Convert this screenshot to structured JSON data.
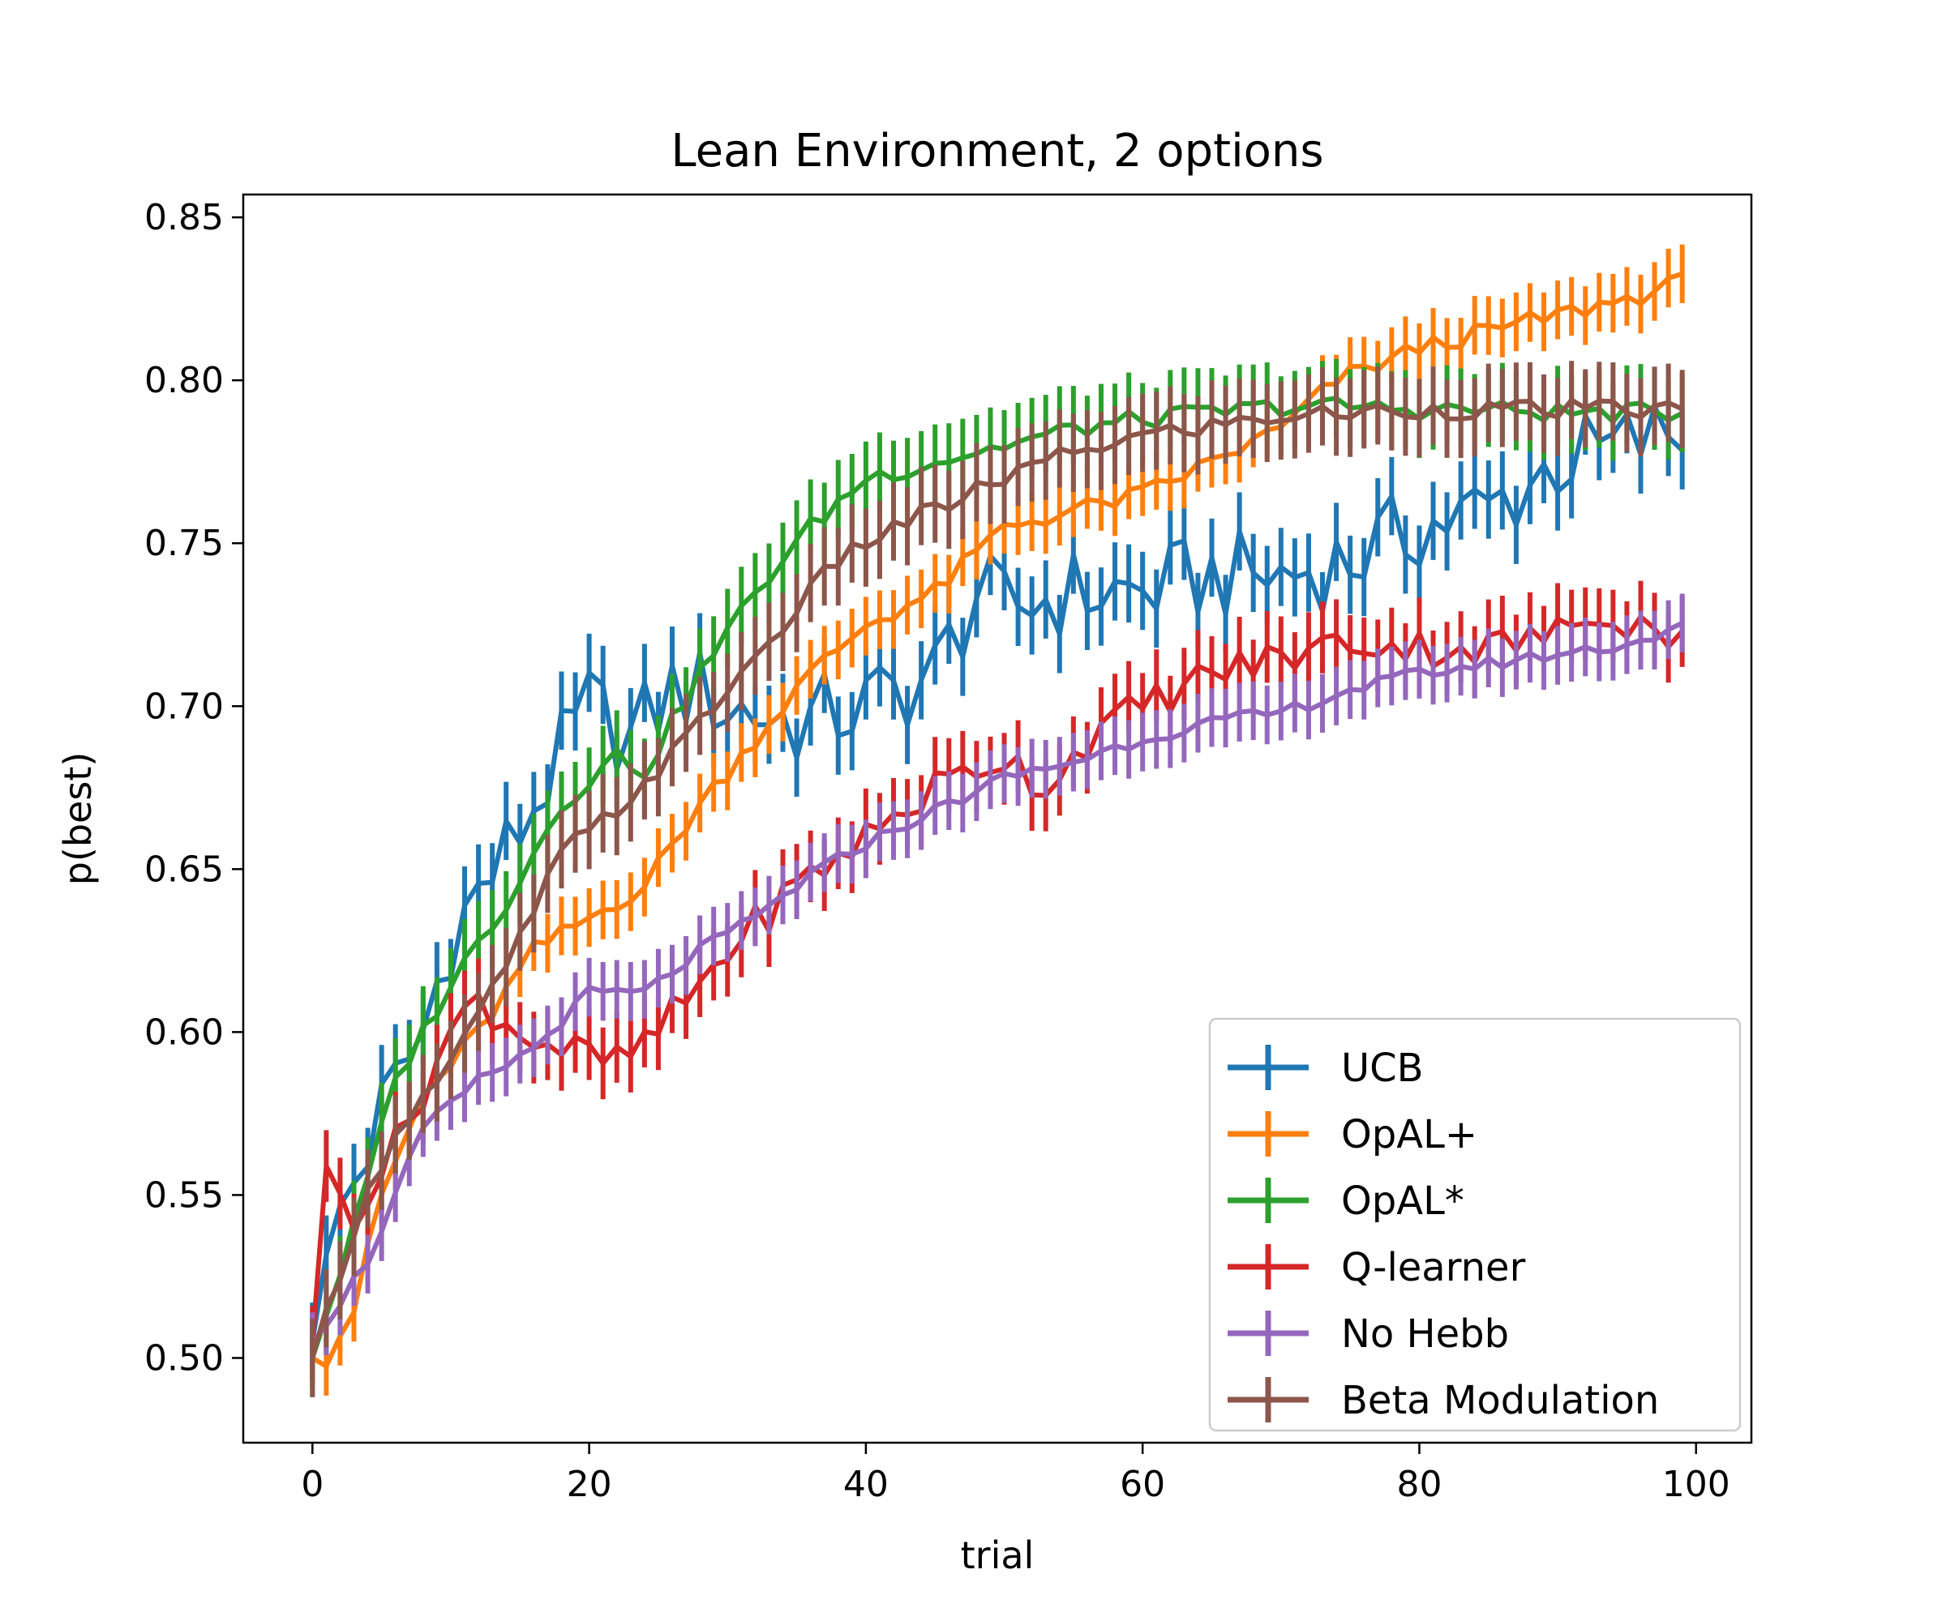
{
  "chart_data": {
    "type": "line",
    "title": "Lean Environment, 2 options",
    "xlabel": "trial",
    "ylabel": "p(best)",
    "xlim": [
      -5,
      104
    ],
    "ylim": [
      0.474,
      0.857
    ],
    "xticks": [
      0,
      20,
      40,
      60,
      80,
      100
    ],
    "xtick_labels": [
      "0",
      "20",
      "40",
      "60",
      "80",
      "100"
    ],
    "yticks": [
      0.5,
      0.55,
      0.6,
      0.65,
      0.7,
      0.75,
      0.8,
      0.85
    ],
    "ytick_labels": [
      "0.50",
      "0.55",
      "0.60",
      "0.65",
      "0.70",
      "0.75",
      "0.80",
      "0.85"
    ],
    "grid": false,
    "legend_position": "bottom-right",
    "error_bars": true,
    "series": [
      {
        "name": "UCB",
        "color": "#1f77b4",
        "key_points": [
          [
            0,
            0.505
          ],
          [
            2,
            0.545
          ],
          [
            5,
            0.575
          ],
          [
            8,
            0.6
          ],
          [
            10,
            0.63
          ],
          [
            14,
            0.655
          ],
          [
            18,
            0.685
          ],
          [
            20,
            0.7
          ],
          [
            23,
            0.69
          ],
          [
            26,
            0.705
          ],
          [
            28,
            0.705
          ],
          [
            30,
            0.7
          ],
          [
            35,
            0.695
          ],
          [
            40,
            0.7
          ],
          [
            45,
            0.71
          ],
          [
            48,
            0.735
          ],
          [
            50,
            0.73
          ],
          [
            55,
            0.735
          ],
          [
            60,
            0.735
          ],
          [
            65,
            0.74
          ],
          [
            70,
            0.74
          ],
          [
            75,
            0.745
          ],
          [
            80,
            0.755
          ],
          [
            85,
            0.76
          ],
          [
            90,
            0.775
          ],
          [
            95,
            0.78
          ],
          [
            99,
            0.785
          ]
        ],
        "error": 0.012,
        "noise": 0.014
      },
      {
        "name": "OpAL+",
        "color": "#ff7f0e",
        "key_points": [
          [
            0,
            0.5
          ],
          [
            1,
            0.5
          ],
          [
            3,
            0.515
          ],
          [
            5,
            0.55
          ],
          [
            8,
            0.58
          ],
          [
            12,
            0.6
          ],
          [
            16,
            0.625
          ],
          [
            20,
            0.635
          ],
          [
            24,
            0.645
          ],
          [
            28,
            0.67
          ],
          [
            32,
            0.69
          ],
          [
            36,
            0.71
          ],
          [
            40,
            0.725
          ],
          [
            45,
            0.735
          ],
          [
            50,
            0.755
          ],
          [
            55,
            0.76
          ],
          [
            60,
            0.765
          ],
          [
            65,
            0.775
          ],
          [
            70,
            0.785
          ],
          [
            74,
            0.8
          ],
          [
            80,
            0.81
          ],
          [
            85,
            0.815
          ],
          [
            90,
            0.82
          ],
          [
            95,
            0.825
          ],
          [
            99,
            0.83
          ]
        ],
        "error": 0.009,
        "noise": 0.003
      },
      {
        "name": "OpAL*",
        "color": "#2ca02c",
        "key_points": [
          [
            0,
            0.5
          ],
          [
            3,
            0.54
          ],
          [
            6,
            0.585
          ],
          [
            10,
            0.615
          ],
          [
            14,
            0.64
          ],
          [
            18,
            0.67
          ],
          [
            22,
            0.685
          ],
          [
            24,
            0.68
          ],
          [
            28,
            0.71
          ],
          [
            32,
            0.735
          ],
          [
            36,
            0.755
          ],
          [
            40,
            0.77
          ],
          [
            45,
            0.775
          ],
          [
            50,
            0.78
          ],
          [
            55,
            0.785
          ],
          [
            60,
            0.788
          ],
          [
            65,
            0.79
          ],
          [
            70,
            0.792
          ],
          [
            75,
            0.792
          ],
          [
            80,
            0.791
          ],
          [
            85,
            0.791
          ],
          [
            90,
            0.79
          ],
          [
            99,
            0.79
          ]
        ],
        "error": 0.012,
        "noise": 0.003
      },
      {
        "name": "Q-learner",
        "color": "#d62728",
        "key_points": [
          [
            0,
            0.505
          ],
          [
            1,
            0.555
          ],
          [
            3,
            0.545
          ],
          [
            6,
            0.565
          ],
          [
            10,
            0.6
          ],
          [
            12,
            0.61
          ],
          [
            15,
            0.6
          ],
          [
            18,
            0.595
          ],
          [
            22,
            0.59
          ],
          [
            25,
            0.6
          ],
          [
            30,
            0.625
          ],
          [
            35,
            0.645
          ],
          [
            40,
            0.66
          ],
          [
            45,
            0.675
          ],
          [
            50,
            0.685
          ],
          [
            53,
            0.675
          ],
          [
            56,
            0.69
          ],
          [
            60,
            0.7
          ],
          [
            65,
            0.71
          ],
          [
            70,
            0.715
          ],
          [
            75,
            0.72
          ],
          [
            80,
            0.718
          ],
          [
            85,
            0.718
          ],
          [
            90,
            0.722
          ],
          [
            93,
            0.73
          ],
          [
            96,
            0.725
          ],
          [
            99,
            0.722
          ]
        ],
        "error": 0.011,
        "noise": 0.006
      },
      {
        "name": "No Hebb",
        "color": "#9467bd",
        "key_points": [
          [
            0,
            0.505
          ],
          [
            4,
            0.53
          ],
          [
            8,
            0.57
          ],
          [
            12,
            0.585
          ],
          [
            16,
            0.595
          ],
          [
            20,
            0.612
          ],
          [
            24,
            0.612
          ],
          [
            28,
            0.625
          ],
          [
            32,
            0.635
          ],
          [
            36,
            0.648
          ],
          [
            40,
            0.658
          ],
          [
            45,
            0.668
          ],
          [
            50,
            0.678
          ],
          [
            55,
            0.683
          ],
          [
            60,
            0.69
          ],
          [
            65,
            0.695
          ],
          [
            70,
            0.698
          ],
          [
            75,
            0.705
          ],
          [
            80,
            0.71
          ],
          [
            85,
            0.713
          ],
          [
            90,
            0.716
          ],
          [
            95,
            0.719
          ],
          [
            99,
            0.724
          ]
        ],
        "error": 0.009,
        "noise": 0.002
      },
      {
        "name": "Beta Modulation",
        "color": "#8c564b",
        "key_points": [
          [
            0,
            0.5
          ],
          [
            3,
            0.54
          ],
          [
            6,
            0.57
          ],
          [
            10,
            0.59
          ],
          [
            14,
            0.62
          ],
          [
            18,
            0.655
          ],
          [
            22,
            0.668
          ],
          [
            26,
            0.685
          ],
          [
            30,
            0.705
          ],
          [
            34,
            0.725
          ],
          [
            38,
            0.745
          ],
          [
            42,
            0.755
          ],
          [
            46,
            0.762
          ],
          [
            50,
            0.77
          ],
          [
            55,
            0.778
          ],
          [
            60,
            0.783
          ],
          [
            65,
            0.786
          ],
          [
            70,
            0.789
          ],
          [
            75,
            0.79
          ],
          [
            80,
            0.791
          ],
          [
            90,
            0.791
          ],
          [
            99,
            0.791
          ]
        ],
        "error": 0.012,
        "noise": 0.003
      }
    ]
  }
}
